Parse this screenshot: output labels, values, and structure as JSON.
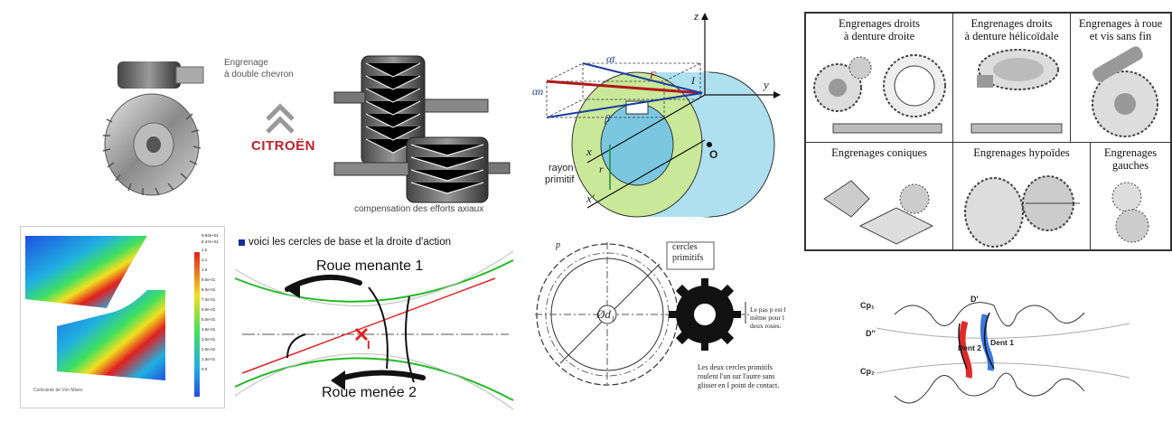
{
  "herringbone": {
    "label_line1": "Engrenage",
    "label_line2": "à double chevron",
    "brand": "CITROËN",
    "caption": "compensation des efforts axiaux"
  },
  "geometry": {
    "axis_z": "z",
    "axis_y": "y",
    "axis_x": "x",
    "axis_x_prime": "x'",
    "point_I": "I",
    "origin": "O",
    "alpha_t": "αt",
    "alpha_n": "αn",
    "beta": "β",
    "force": "F",
    "radius_r": "r",
    "rayon_line1": "rayon",
    "rayon_line2": "primitif"
  },
  "types_grid": {
    "cells": [
      {
        "title": "Engrenages droits\nà denture droite"
      },
      {
        "title": "Engrenages droits\nà denture hélicoïdale"
      },
      {
        "title": "Engrenages à roue\net vis sans fin"
      },
      {
        "title": "Engrenages coniques"
      },
      {
        "title": "Engrenages hypoïdes"
      },
      {
        "title": "Engrenages\ngauches"
      }
    ]
  },
  "fea": {
    "legend_values": [
      "9.94e+01",
      "8.47e+01",
      "1.2",
      "1.1",
      "1.0",
      "9.0e-01",
      "8.0e-01",
      "7.0e-01",
      "6.0e-01",
      "5.0e-01",
      "4.0e-01",
      "3.0e-01",
      "2.0e-01",
      "1.0e-01",
      "0.0"
    ],
    "caption": "Contrainte de Von Mises",
    "colors": {
      "high": "#e02020",
      "mid": "#f0e020",
      "low": "#2050e0"
    }
  },
  "base_circles": {
    "title": "voici les cercles de base et la droite d'action",
    "driving": "Roue menante 1",
    "driven": "Roue menée 2",
    "contact": "I",
    "colors": {
      "circle": "#22bb22",
      "line": "#dd2222"
    }
  },
  "pitch": {
    "pitch_p": "p",
    "cercles_line1": "cercles",
    "cercles_line2": "primitifs",
    "d1": "Ød₁",
    "d2": "Ød",
    "note1": "Le pas p est l",
    "note2": "même pour l",
    "note3": "deux roues.",
    "note4": "Les deux cercles primitifs",
    "note5": "roulent l'un sur l'autre sans",
    "note6": "glisser en I point de contact."
  },
  "teeth": {
    "cp1": "Cp₁",
    "cp2": "Cp₂",
    "d_prime": "D'",
    "d_second": "D''",
    "dent2": "Dent 2",
    "dent1": "Dent 1",
    "colors": {
      "dent1": "#3a78e0",
      "dent2": "#e02a2a"
    }
  }
}
